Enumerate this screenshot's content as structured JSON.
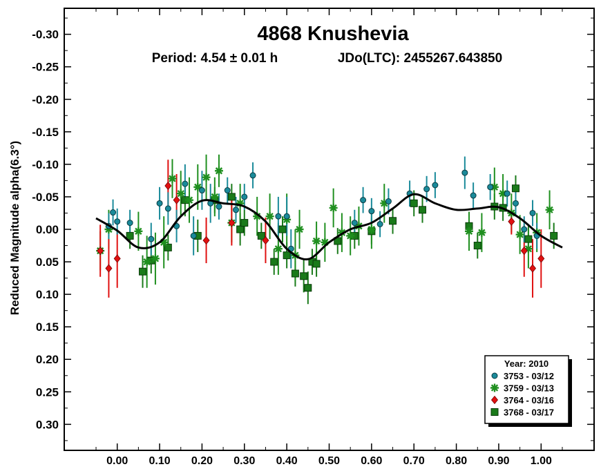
{
  "chart_data": {
    "type": "scatter",
    "title": "4868 Knushevia",
    "subtitle_period": "Period: 4.54 ± 0.01 h",
    "subtitle_epoch": "JDo(LTC): 2455267.643850",
    "ylabel": "Reduced Magnitude alpha(6.3°)",
    "xlabel": "",
    "xlim": [
      -0.125,
      1.125
    ],
    "ylim": [
      -0.34,
      0.34
    ],
    "y_inverted": true,
    "grid": false,
    "legend_position": "bottom-right",
    "x_ticks": [
      "0.00",
      "0.10",
      "0.20",
      "0.30",
      "0.40",
      "0.50",
      "0.60",
      "0.70",
      "0.80",
      "0.90",
      "1.00"
    ],
    "y_ticks": [
      "-0.30",
      "-0.25",
      "-0.20",
      "-0.15",
      "-0.10",
      "-0.05",
      "0.00",
      "0.05",
      "0.10",
      "0.15",
      "0.20",
      "0.25",
      "0.30"
    ],
    "legend": {
      "title": "Year: 2010",
      "entries": [
        "3753 - 03/12",
        "3759 - 03/13",
        "3764 - 03/16",
        "3768 - 03/17"
      ]
    },
    "colors": {
      "3753": "#1a8a9a",
      "3759": "#1f8f1f",
      "3764": "#e01010",
      "3768": "#1a7a1a",
      "fit": "#000000"
    },
    "fit_curve": {
      "x": [
        -0.05,
        0.0,
        0.05,
        0.1,
        0.15,
        0.2,
        0.25,
        0.3,
        0.35,
        0.4,
        0.45,
        0.5,
        0.55,
        0.6,
        0.65,
        0.7,
        0.75,
        0.8,
        0.85,
        0.9,
        0.95,
        1.0,
        1.05
      ],
      "y": [
        -0.017,
        0.002,
        0.028,
        0.02,
        -0.02,
        -0.044,
        -0.04,
        -0.035,
        -0.012,
        0.03,
        0.046,
        0.02,
        0.0,
        -0.01,
        -0.032,
        -0.054,
        -0.04,
        -0.03,
        -0.032,
        -0.034,
        -0.017,
        0.01,
        0.028
      ]
    },
    "series": [
      {
        "name": "3753 - 03/12",
        "marker": "circle",
        "x": [
          -0.02,
          -0.01,
          0.0,
          0.03,
          0.08,
          0.1,
          0.12,
          0.14,
          0.16,
          0.18,
          0.2,
          0.22,
          0.24,
          0.26,
          0.28,
          0.3,
          0.32,
          0.38,
          0.4,
          0.41,
          0.56,
          0.58,
          0.6,
          0.62,
          0.64,
          0.69,
          0.73,
          0.75,
          0.82,
          0.84,
          0.88,
          0.92,
          0.94,
          0.96,
          0.98,
          0.99
        ],
        "y": [
          -0.005,
          -0.026,
          -0.012,
          -0.01,
          0.015,
          -0.04,
          -0.032,
          -0.005,
          -0.07,
          0.01,
          -0.06,
          -0.04,
          -0.035,
          -0.06,
          -0.03,
          -0.05,
          -0.083,
          -0.02,
          -0.02,
          0.03,
          -0.01,
          -0.045,
          -0.028,
          -0.008,
          -0.043,
          -0.055,
          -0.062,
          -0.068,
          -0.087,
          -0.052,
          -0.065,
          -0.055,
          -0.04,
          0.0,
          -0.025,
          0.01
        ],
        "err": [
          0.02,
          0.02,
          0.02,
          0.02,
          0.025,
          0.025,
          0.025,
          0.025,
          0.03,
          0.03,
          0.03,
          0.03,
          0.02,
          0.02,
          0.02,
          0.02,
          0.02,
          0.03,
          0.03,
          0.03,
          0.02,
          0.02,
          0.02,
          0.02,
          0.02,
          0.02,
          0.02,
          0.02,
          0.025,
          0.02,
          0.02,
          0.02,
          0.02,
          0.02,
          0.02,
          0.02
        ]
      },
      {
        "name": "3759 - 03/13",
        "marker": "asterisk",
        "x": [
          -0.04,
          -0.02,
          0.05,
          0.07,
          0.09,
          0.11,
          0.13,
          0.15,
          0.17,
          0.19,
          0.21,
          0.23,
          0.24,
          0.27,
          0.29,
          0.33,
          0.36,
          0.38,
          0.4,
          0.42,
          0.43,
          0.47,
          0.49,
          0.51,
          0.53,
          0.55,
          0.57,
          0.6,
          0.63,
          0.83,
          0.86,
          0.89,
          0.91,
          0.93,
          0.95,
          0.97,
          0.99,
          1.02
        ],
        "y": [
          0.033,
          0.0,
          0.003,
          0.05,
          0.045,
          0.02,
          -0.078,
          -0.055,
          -0.045,
          -0.065,
          -0.08,
          -0.05,
          -0.09,
          -0.01,
          -0.04,
          -0.02,
          -0.02,
          0.03,
          -0.015,
          0.04,
          0.0,
          0.018,
          0.02,
          -0.033,
          0.005,
          0.01,
          -0.005,
          0.0,
          -0.04,
          0.003,
          0.005,
          -0.065,
          -0.055,
          -0.025,
          0.008,
          0.03,
          0.005,
          -0.03
        ],
        "err": [
          0.03,
          0.03,
          0.03,
          0.04,
          0.04,
          0.04,
          0.03,
          0.035,
          0.035,
          0.035,
          0.035,
          0.03,
          0.025,
          0.03,
          0.03,
          0.03,
          0.035,
          0.04,
          0.04,
          0.04,
          0.03,
          0.03,
          0.03,
          0.03,
          0.03,
          0.03,
          0.03,
          0.03,
          0.03,
          0.03,
          0.03,
          0.03,
          0.03,
          0.03,
          0.03,
          0.03,
          0.03,
          0.03
        ]
      },
      {
        "name": "3764 - 03/16",
        "marker": "diamond",
        "x": [
          -0.04,
          -0.02,
          0.0,
          0.12,
          0.14,
          0.21,
          0.27,
          0.35,
          0.93,
          0.96,
          0.98,
          1.0
        ],
        "y": [
          0.033,
          0.06,
          0.045,
          -0.067,
          -0.045,
          0.017,
          -0.01,
          0.017,
          -0.012,
          0.033,
          0.06,
          0.045
        ],
        "err": [
          0.04,
          0.045,
          0.045,
          0.04,
          0.04,
          0.035,
          0.035,
          0.035,
          0.02,
          0.04,
          0.045,
          0.045
        ]
      },
      {
        "name": "3768 - 03/17",
        "marker": "square",
        "x": [
          0.03,
          0.06,
          0.08,
          0.12,
          0.16,
          0.19,
          0.23,
          0.27,
          0.29,
          0.3,
          0.34,
          0.37,
          0.39,
          0.4,
          0.42,
          0.44,
          0.45,
          0.46,
          0.47,
          0.52,
          0.56,
          0.6,
          0.65,
          0.7,
          0.72,
          0.83,
          0.85,
          0.89,
          0.91,
          0.94,
          0.97,
          1.03
        ],
        "y": [
          0.01,
          0.065,
          0.048,
          0.028,
          -0.045,
          0.01,
          -0.045,
          -0.05,
          0.0,
          -0.01,
          0.01,
          0.05,
          0.0,
          0.04,
          0.068,
          0.072,
          0.09,
          0.05,
          0.053,
          0.018,
          0.01,
          0.003,
          -0.013,
          -0.04,
          -0.03,
          -0.005,
          0.025,
          -0.035,
          -0.033,
          -0.063,
          0.015,
          0.01
        ],
        "err": [
          0.02,
          0.025,
          0.02,
          0.02,
          0.025,
          0.025,
          0.02,
          0.02,
          0.025,
          0.02,
          0.02,
          0.02,
          0.02,
          0.02,
          0.02,
          0.025,
          0.025,
          0.02,
          0.02,
          0.02,
          0.02,
          0.02,
          0.02,
          0.02,
          0.02,
          0.02,
          0.02,
          0.02,
          0.02,
          0.02,
          0.02,
          0.02
        ]
      }
    ]
  }
}
